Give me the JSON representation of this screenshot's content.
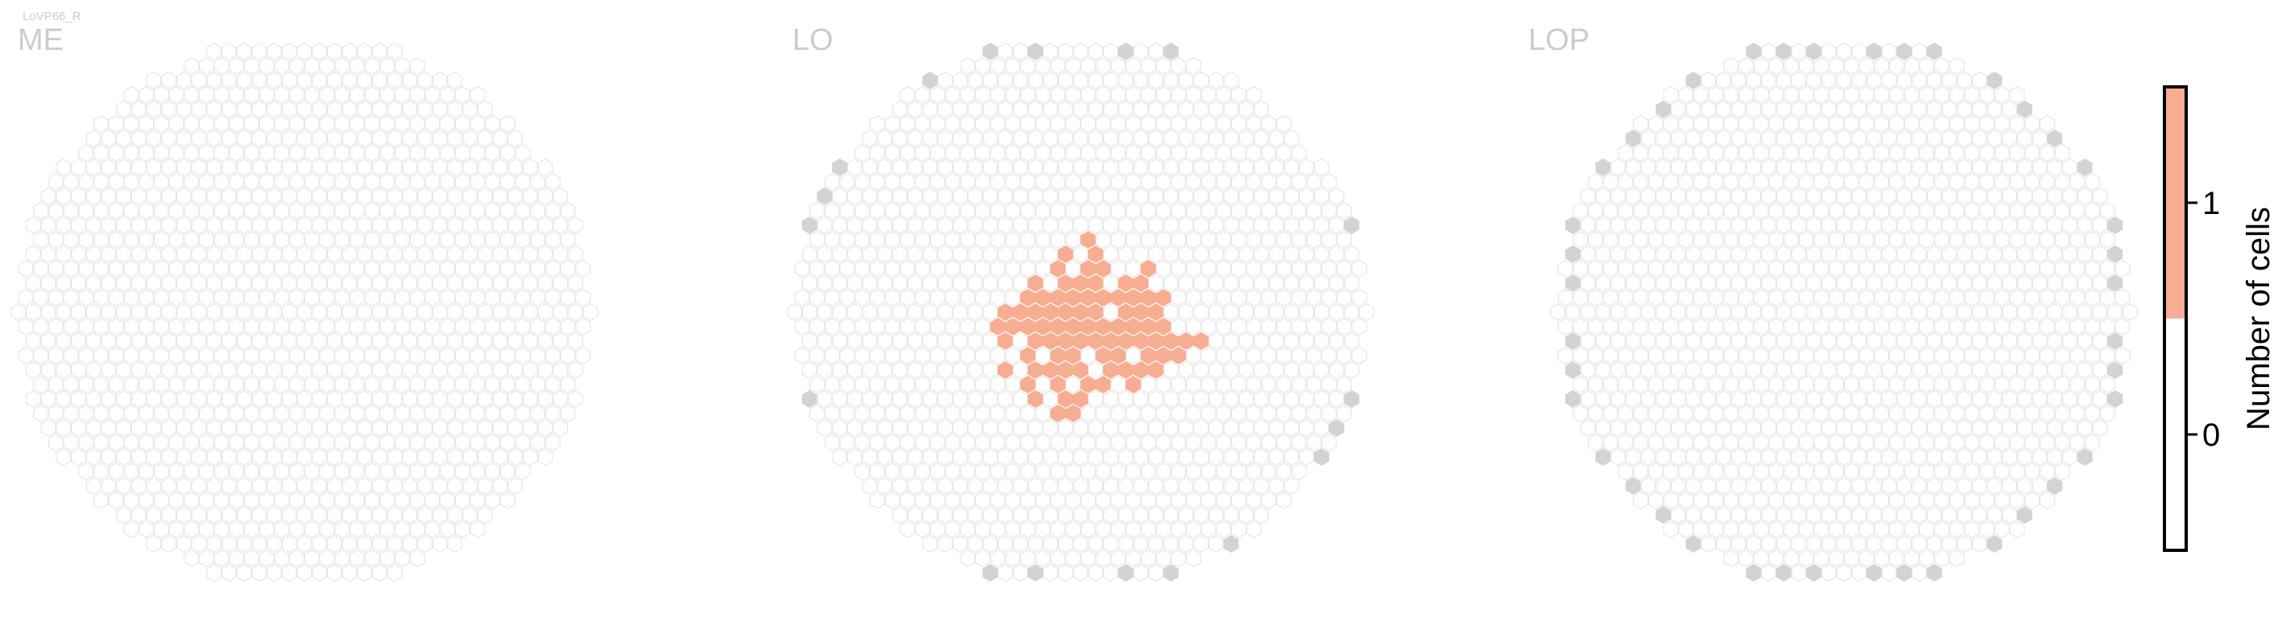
{
  "figure": {
    "caption": "LoVP66_R"
  },
  "chart_data": [
    {
      "type": "heatmap",
      "title": "ME",
      "grid": "hexagonal",
      "highlighted_cells": []
    },
    {
      "type": "heatmap",
      "title": "LO",
      "grid": "hexagonal",
      "highlighted_cells": [
        [
          0,
          5
        ],
        [
          -1,
          4
        ],
        [
          1,
          4
        ],
        [
          -2,
          3
        ],
        [
          0,
          3
        ],
        [
          1,
          3
        ],
        [
          4,
          3
        ],
        [
          -3,
          2
        ],
        [
          -1,
          2
        ],
        [
          0,
          2
        ],
        [
          1,
          2
        ],
        [
          3,
          2
        ],
        [
          4,
          2
        ],
        [
          -4,
          1
        ],
        [
          -3,
          1
        ],
        [
          -2,
          1
        ],
        [
          -1,
          1
        ],
        [
          0,
          1
        ],
        [
          1,
          1
        ],
        [
          2,
          1
        ],
        [
          3,
          1
        ],
        [
          4,
          1
        ],
        [
          5,
          1
        ],
        [
          -5,
          0
        ],
        [
          -4,
          0
        ],
        [
          -3,
          0
        ],
        [
          -2,
          0
        ],
        [
          -1,
          0
        ],
        [
          0,
          0
        ],
        [
          1,
          0
        ],
        [
          3,
          0
        ],
        [
          4,
          0
        ],
        [
          5,
          0
        ],
        [
          -6,
          -1
        ],
        [
          -5,
          -1
        ],
        [
          -4,
          -1
        ],
        [
          -3,
          -1
        ],
        [
          -2,
          -1
        ],
        [
          -1,
          -1
        ],
        [
          0,
          -1
        ],
        [
          1,
          -1
        ],
        [
          2,
          -1
        ],
        [
          3,
          -1
        ],
        [
          4,
          -1
        ],
        [
          5,
          -1
        ],
        [
          -5,
          -2
        ],
        [
          -3,
          -2
        ],
        [
          -2,
          -2
        ],
        [
          -1,
          -2
        ],
        [
          0,
          -2
        ],
        [
          1,
          -2
        ],
        [
          2,
          -2
        ],
        [
          3,
          -2
        ],
        [
          4,
          -2
        ],
        [
          5,
          -2
        ],
        [
          6,
          -2
        ],
        [
          7,
          -2
        ],
        [
          8,
          -2
        ],
        [
          -4,
          -3
        ],
        [
          -2,
          -3
        ],
        [
          -1,
          -3
        ],
        [
          1,
          -3
        ],
        [
          2,
          -3
        ],
        [
          4,
          -3
        ],
        [
          5,
          -3
        ],
        [
          6,
          -3
        ],
        [
          -5,
          -4
        ],
        [
          -3,
          -4
        ],
        [
          -2,
          -4
        ],
        [
          -1,
          -4
        ],
        [
          0,
          -4
        ],
        [
          2,
          -4
        ],
        [
          3,
          -4
        ],
        [
          4,
          -4
        ],
        [
          5,
          -4
        ],
        [
          -4,
          -5
        ],
        [
          -2,
          -5
        ],
        [
          0,
          -5
        ],
        [
          1,
          -5
        ],
        [
          3,
          -5
        ],
        [
          -3,
          -6
        ],
        [
          -1,
          -6
        ],
        [
          0,
          -6
        ],
        [
          -2,
          -7
        ],
        [
          -1,
          -7
        ]
      ]
    },
    {
      "type": "heatmap",
      "title": "LOP",
      "grid": "hexagonal",
      "highlighted_cells": []
    }
  ],
  "colorbar": {
    "label": "Number of cells",
    "ticks": [
      "1",
      "0"
    ],
    "levels": [
      {
        "value": 0,
        "color": "#ffffff"
      },
      {
        "value": 1,
        "color": "#f7ad92"
      }
    ]
  },
  "colors": {
    "highlight": "#f7ad92",
    "hex_outline": "#e6e6e6",
    "boundary_fill": "#d3d3d3",
    "title": "#cccccc"
  }
}
